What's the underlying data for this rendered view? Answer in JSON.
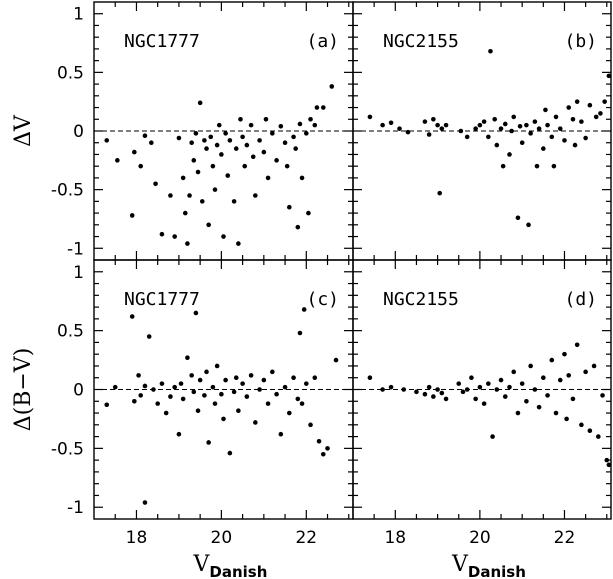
{
  "chart_data": [
    {
      "panel": "a",
      "type": "scatter",
      "title": "NGC1777",
      "panel_tag": "(a)",
      "ylabel": "ΔV",
      "xlabel": "",
      "xlim": [
        17,
        23.1
      ],
      "ylim": [
        -1.1,
        1.1
      ],
      "xticks": [],
      "yticks": [
        "1",
        "0.5",
        "0",
        "-0.5",
        "-1"
      ],
      "ref_line_y": 0,
      "points": [
        [
          17.3,
          -0.08
        ],
        [
          17.55,
          -0.25
        ],
        [
          17.9,
          -0.72
        ],
        [
          17.95,
          -0.18
        ],
        [
          18.1,
          -0.3
        ],
        [
          18.2,
          -0.04
        ],
        [
          18.35,
          -0.1
        ],
        [
          18.45,
          -0.45
        ],
        [
          18.6,
          -0.88
        ],
        [
          18.8,
          -0.55
        ],
        [
          18.9,
          -0.9
        ],
        [
          19.0,
          -0.06
        ],
        [
          19.1,
          -0.4
        ],
        [
          19.15,
          -0.7
        ],
        [
          19.2,
          -0.96
        ],
        [
          19.25,
          -0.55
        ],
        [
          19.3,
          -0.1
        ],
        [
          19.35,
          -0.25
        ],
        [
          19.4,
          -0.02
        ],
        [
          19.45,
          -0.35
        ],
        [
          19.5,
          0.24
        ],
        [
          19.55,
          -0.6
        ],
        [
          19.6,
          -0.08
        ],
        [
          19.65,
          -0.15
        ],
        [
          19.7,
          -0.8
        ],
        [
          19.75,
          -0.05
        ],
        [
          19.8,
          -0.3
        ],
        [
          19.85,
          -0.5
        ],
        [
          19.9,
          -0.12
        ],
        [
          19.95,
          0.05
        ],
        [
          20.0,
          -0.2
        ],
        [
          20.05,
          -0.9
        ],
        [
          20.1,
          -0.02
        ],
        [
          20.15,
          -0.38
        ],
        [
          20.2,
          -0.08
        ],
        [
          20.3,
          -0.6
        ],
        [
          20.35,
          -0.15
        ],
        [
          20.4,
          -0.96
        ],
        [
          20.45,
          0.1
        ],
        [
          20.5,
          -0.05
        ],
        [
          20.55,
          -0.3
        ],
        [
          20.6,
          -0.12
        ],
        [
          20.7,
          0.05
        ],
        [
          20.75,
          -0.22
        ],
        [
          20.8,
          -0.55
        ],
        [
          20.9,
          -0.08
        ],
        [
          21.0,
          -0.18
        ],
        [
          21.05,
          0.1
        ],
        [
          21.1,
          -0.4
        ],
        [
          21.2,
          -0.02
        ],
        [
          21.3,
          -0.25
        ],
        [
          21.4,
          0.04
        ],
        [
          21.5,
          -0.1
        ],
        [
          21.55,
          -0.3
        ],
        [
          21.6,
          -0.65
        ],
        [
          21.7,
          -0.05
        ],
        [
          21.75,
          -0.15
        ],
        [
          21.8,
          -0.82
        ],
        [
          21.85,
          0.06
        ],
        [
          21.9,
          -0.4
        ],
        [
          22.0,
          -0.02
        ],
        [
          22.05,
          -0.7
        ],
        [
          22.1,
          0.1
        ],
        [
          22.2,
          0.05
        ],
        [
          22.25,
          0.2
        ],
        [
          22.4,
          0.2
        ],
        [
          22.6,
          0.38
        ]
      ]
    },
    {
      "panel": "b",
      "type": "scatter",
      "title": "NGC2155",
      "panel_tag": "(b)",
      "ylabel": "",
      "xlabel": "",
      "xlim": [
        17,
        23.1
      ],
      "ylim": [
        -1.1,
        1.1
      ],
      "xticks": [],
      "yticks": [],
      "ref_line_y": 0,
      "points": [
        [
          17.4,
          0.12
        ],
        [
          17.7,
          0.05
        ],
        [
          17.9,
          0.07
        ],
        [
          18.1,
          0.02
        ],
        [
          18.3,
          -0.01
        ],
        [
          18.7,
          0.08
        ],
        [
          18.8,
          -0.03
        ],
        [
          18.9,
          0.1
        ],
        [
          19.0,
          0.05
        ],
        [
          19.05,
          -0.53
        ],
        [
          19.1,
          0.02
        ],
        [
          19.2,
          0.05
        ],
        [
          19.55,
          0.0
        ],
        [
          19.7,
          -0.05
        ],
        [
          19.9,
          0.02
        ],
        [
          20.0,
          0.05
        ],
        [
          20.1,
          0.08
        ],
        [
          20.2,
          -0.05
        ],
        [
          20.25,
          0.68
        ],
        [
          20.35,
          0.1
        ],
        [
          20.4,
          -0.12
        ],
        [
          20.5,
          0.02
        ],
        [
          20.55,
          -0.3
        ],
        [
          20.6,
          0.06
        ],
        [
          20.7,
          -0.2
        ],
        [
          20.75,
          0.0
        ],
        [
          20.8,
          0.12
        ],
        [
          20.9,
          -0.74
        ],
        [
          20.95,
          0.04
        ],
        [
          21.0,
          -0.1
        ],
        [
          21.1,
          0.05
        ],
        [
          21.15,
          -0.8
        ],
        [
          21.2,
          -0.02
        ],
        [
          21.3,
          0.08
        ],
        [
          21.35,
          -0.3
        ],
        [
          21.4,
          0.02
        ],
        [
          21.5,
          -0.15
        ],
        [
          21.55,
          0.18
        ],
        [
          21.6,
          0.05
        ],
        [
          21.7,
          -0.05
        ],
        [
          21.75,
          -0.3
        ],
        [
          21.8,
          0.12
        ],
        [
          21.9,
          0.02
        ],
        [
          22.0,
          -0.08
        ],
        [
          22.1,
          0.2
        ],
        [
          22.2,
          0.1
        ],
        [
          22.25,
          -0.12
        ],
        [
          22.3,
          0.25
        ],
        [
          22.4,
          0.08
        ],
        [
          22.5,
          -0.06
        ],
        [
          22.6,
          0.22
        ],
        [
          22.75,
          0.12
        ],
        [
          22.85,
          0.15
        ],
        [
          22.95,
          0.25
        ],
        [
          23.05,
          0.47
        ]
      ]
    },
    {
      "panel": "c",
      "type": "scatter",
      "title": "NGC1777",
      "panel_tag": "(c)",
      "ylabel": "Δ(B−V)",
      "xlabel": "V_Danish",
      "xlim": [
        17,
        23.1
      ],
      "ylim": [
        -1.1,
        1.1
      ],
      "xticks": [
        "18",
        "20",
        "22"
      ],
      "yticks": [
        "1",
        "0.5",
        "0",
        "-0.5",
        "-1"
      ],
      "ref_line_y": 0,
      "points": [
        [
          17.3,
          -0.13
        ],
        [
          17.5,
          0.02
        ],
        [
          17.9,
          0.62
        ],
        [
          17.95,
          -0.1
        ],
        [
          18.05,
          0.12
        ],
        [
          18.1,
          -0.05
        ],
        [
          18.2,
          0.03
        ],
        [
          18.3,
          0.45
        ],
        [
          18.4,
          0.0
        ],
        [
          18.5,
          -0.12
        ],
        [
          18.6,
          0.05
        ],
        [
          18.7,
          -0.2
        ],
        [
          18.8,
          -0.06
        ],
        [
          18.9,
          0.02
        ],
        [
          19.0,
          -0.38
        ],
        [
          19.05,
          0.05
        ],
        [
          19.1,
          -0.08
        ],
        [
          19.2,
          0.27
        ],
        [
          19.3,
          0.12
        ],
        [
          19.35,
          -0.02
        ],
        [
          19.4,
          0.65
        ],
        [
          19.45,
          -0.18
        ],
        [
          19.5,
          0.08
        ],
        [
          19.6,
          -0.05
        ],
        [
          19.65,
          0.15
        ],
        [
          19.7,
          -0.45
        ],
        [
          19.8,
          0.02
        ],
        [
          19.85,
          -0.12
        ],
        [
          19.9,
          0.2
        ],
        [
          20.0,
          -0.04
        ],
        [
          20.05,
          -0.25
        ],
        [
          20.1,
          0.08
        ],
        [
          20.2,
          -0.54
        ],
        [
          20.3,
          -0.02
        ],
        [
          20.35,
          0.1
        ],
        [
          20.4,
          -0.18
        ],
        [
          20.5,
          0.05
        ],
        [
          20.6,
          -0.06
        ],
        [
          20.7,
          0.12
        ],
        [
          20.8,
          -0.28
        ],
        [
          20.9,
          0.0
        ],
        [
          21.0,
          0.08
        ],
        [
          21.1,
          -0.12
        ],
        [
          21.2,
          0.15
        ],
        [
          21.3,
          -0.04
        ],
        [
          21.4,
          -0.38
        ],
        [
          21.5,
          0.02
        ],
        [
          21.6,
          -0.2
        ],
        [
          21.7,
          0.1
        ],
        [
          21.8,
          -0.08
        ],
        [
          21.85,
          0.48
        ],
        [
          21.9,
          -0.12
        ],
        [
          21.95,
          0.68
        ],
        [
          22.0,
          0.05
        ],
        [
          22.1,
          -0.3
        ],
        [
          22.2,
          0.1
        ],
        [
          22.3,
          -0.44
        ],
        [
          22.4,
          -0.55
        ],
        [
          22.5,
          -0.5
        ],
        [
          22.7,
          0.25
        ],
        [
          18.2,
          -0.96
        ]
      ]
    },
    {
      "panel": "d",
      "type": "scatter",
      "title": "NGC2155",
      "panel_tag": "(d)",
      "ylabel": "",
      "xlabel": "V_Danish",
      "xlim": [
        17,
        23.1
      ],
      "ylim": [
        -1.1,
        1.1
      ],
      "xticks": [
        "18",
        "20",
        "22"
      ],
      "yticks": [],
      "ref_line_y": 0,
      "points": [
        [
          17.4,
          0.1
        ],
        [
          17.7,
          0.0
        ],
        [
          17.9,
          0.02
        ],
        [
          18.2,
          0.0
        ],
        [
          18.5,
          -0.02
        ],
        [
          18.7,
          -0.04
        ],
        [
          18.8,
          0.02
        ],
        [
          18.9,
          -0.06
        ],
        [
          19.0,
          0.0
        ],
        [
          19.1,
          -0.03
        ],
        [
          19.2,
          -0.08
        ],
        [
          19.5,
          0.05
        ],
        [
          19.6,
          -0.02
        ],
        [
          19.7,
          0.0
        ],
        [
          19.8,
          0.1
        ],
        [
          19.9,
          -0.08
        ],
        [
          20.0,
          0.02
        ],
        [
          20.1,
          -0.12
        ],
        [
          20.2,
          0.05
        ],
        [
          20.3,
          -0.4
        ],
        [
          20.4,
          0.0
        ],
        [
          20.5,
          0.08
        ],
        [
          20.6,
          -0.06
        ],
        [
          20.7,
          0.02
        ],
        [
          20.8,
          0.15
        ],
        [
          20.9,
          -0.2
        ],
        [
          21.0,
          0.05
        ],
        [
          21.1,
          -0.1
        ],
        [
          21.2,
          0.2
        ],
        [
          21.3,
          0.0
        ],
        [
          21.4,
          -0.15
        ],
        [
          21.5,
          0.1
        ],
        [
          21.6,
          -0.05
        ],
        [
          21.7,
          0.25
        ],
        [
          21.8,
          -0.2
        ],
        [
          21.9,
          0.08
        ],
        [
          22.0,
          0.3
        ],
        [
          22.05,
          -0.25
        ],
        [
          22.1,
          0.12
        ],
        [
          22.2,
          -0.08
        ],
        [
          22.3,
          0.38
        ],
        [
          22.4,
          -0.3
        ],
        [
          22.5,
          0.15
        ],
        [
          22.6,
          -0.35
        ],
        [
          22.7,
          0.2
        ],
        [
          22.8,
          -0.4
        ],
        [
          22.9,
          -0.05
        ],
        [
          23.0,
          -0.6
        ],
        [
          23.05,
          -0.64
        ]
      ]
    }
  ]
}
